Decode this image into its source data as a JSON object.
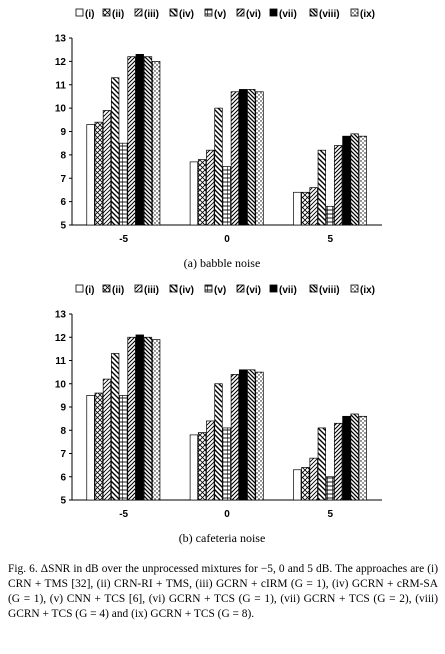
{
  "figure": {
    "caption": "Fig. 6.    ΔSNR in dB over the unprocessed mixtures for −5, 0 and 5 dB. The approaches are (i) CRN + TMS [32], (ii) CRN-RI + TMS, (iii) GCRN + cIRM (G = 1), (iv) GCRN + cRM-SA (G = 1), (v) CNN + TCS [6], (vi) GCRN + TCS (G = 1), (vii) GCRN + TCS (G = 2), (viii) GCRN + TCS (G = 4) and (ix) GCRN + TCS (G = 8)."
  },
  "chart_data": [
    {
      "type": "bar",
      "subcaption": "(a) babble noise",
      "categories": [
        "-5",
        "0",
        "5"
      ],
      "ylim": [
        5,
        13
      ],
      "yticks": [
        "5",
        "6",
        "7",
        "8",
        "9",
        "10",
        "11",
        "12",
        "13"
      ],
      "legend_position": "top",
      "grid": false,
      "series": [
        {
          "name": "(i)",
          "values": [
            9.3,
            7.7,
            6.4
          ]
        },
        {
          "name": "(ii)",
          "values": [
            9.4,
            7.8,
            6.4
          ]
        },
        {
          "name": "(iii)",
          "values": [
            9.9,
            8.2,
            6.6
          ]
        },
        {
          "name": "(iv)",
          "values": [
            11.3,
            10.0,
            8.2
          ]
        },
        {
          "name": "(v)",
          "values": [
            8.5,
            7.5,
            5.8
          ]
        },
        {
          "name": "(vi)",
          "values": [
            12.2,
            10.7,
            8.4
          ]
        },
        {
          "name": "(vii)",
          "values": [
            12.3,
            10.8,
            8.8
          ]
        },
        {
          "name": "(viii)",
          "values": [
            12.2,
            10.8,
            8.9
          ]
        },
        {
          "name": "(ix)",
          "values": [
            12.0,
            10.7,
            8.8
          ]
        }
      ]
    },
    {
      "type": "bar",
      "subcaption": "(b) cafeteria noise",
      "categories": [
        "-5",
        "0",
        "5"
      ],
      "ylim": [
        5,
        13
      ],
      "yticks": [
        "5",
        "6",
        "7",
        "8",
        "9",
        "10",
        "11",
        "12",
        "13"
      ],
      "legend_position": "top",
      "grid": false,
      "series": [
        {
          "name": "(i)",
          "values": [
            9.5,
            7.8,
            6.3
          ]
        },
        {
          "name": "(ii)",
          "values": [
            9.6,
            7.9,
            6.4
          ]
        },
        {
          "name": "(iii)",
          "values": [
            10.2,
            8.4,
            6.8
          ]
        },
        {
          "name": "(iv)",
          "values": [
            11.3,
            10.0,
            8.1
          ]
        },
        {
          "name": "(v)",
          "values": [
            9.5,
            8.1,
            6.0
          ]
        },
        {
          "name": "(vi)",
          "values": [
            12.0,
            10.4,
            8.3
          ]
        },
        {
          "name": "(vii)",
          "values": [
            12.1,
            10.6,
            8.6
          ]
        },
        {
          "name": "(viii)",
          "values": [
            12.0,
            10.6,
            8.7
          ]
        },
        {
          "name": "(ix)",
          "values": [
            11.9,
            10.5,
            8.6
          ]
        }
      ]
    }
  ]
}
